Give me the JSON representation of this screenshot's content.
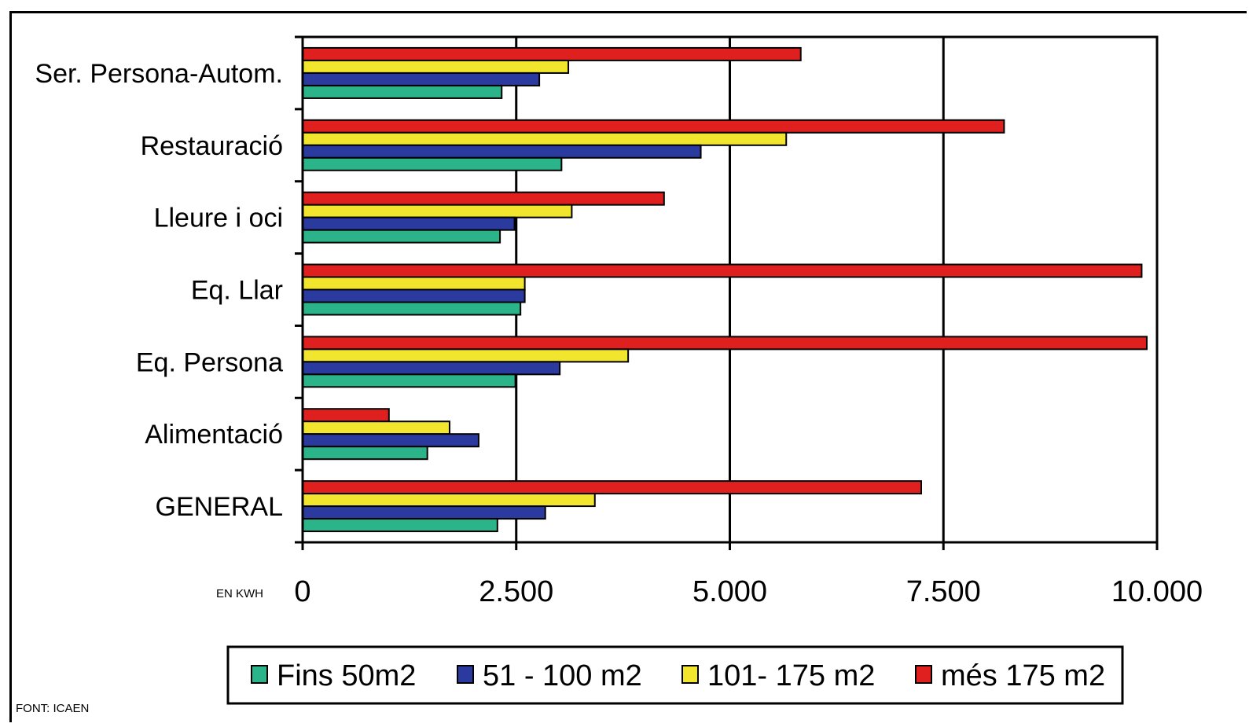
{
  "chart_data": {
    "type": "bar",
    "orientation": "horizontal",
    "categories": [
      "GENERAL",
      "Alimentació",
      "Eq. Persona",
      "Eq. Llar",
      "Lleure i oci",
      "Restauració",
      "Ser. Persona-Autom."
    ],
    "series": [
      {
        "name": "Fins 50m2",
        "color": "#2bb38a",
        "values": [
          2280,
          1460,
          2490,
          2550,
          2310,
          3030,
          2330
        ]
      },
      {
        "name": "51 - 100 m2",
        "color": "#2b3a9e",
        "values": [
          2840,
          2060,
          3010,
          2600,
          2480,
          4660,
          2770
        ]
      },
      {
        "name": "101- 175 m2",
        "color": "#f2e52e",
        "values": [
          3420,
          1720,
          3810,
          2600,
          3150,
          5660,
          3110
        ]
      },
      {
        "name": "més 175 m2",
        "color": "#e0201e",
        "values": [
          7240,
          1010,
          9880,
          9820,
          4230,
          8210,
          5830
        ]
      }
    ],
    "xlim": [
      0,
      10000
    ],
    "xticks": [
      0,
      2500,
      5000,
      7500,
      10000
    ],
    "xtick_labels": [
      "0",
      "2.500",
      "5.000",
      "7.500",
      "10.000"
    ],
    "unit_label": "EN KWH",
    "grid": true,
    "legend_position": "bottom"
  },
  "source": "FONT: ICAEN"
}
